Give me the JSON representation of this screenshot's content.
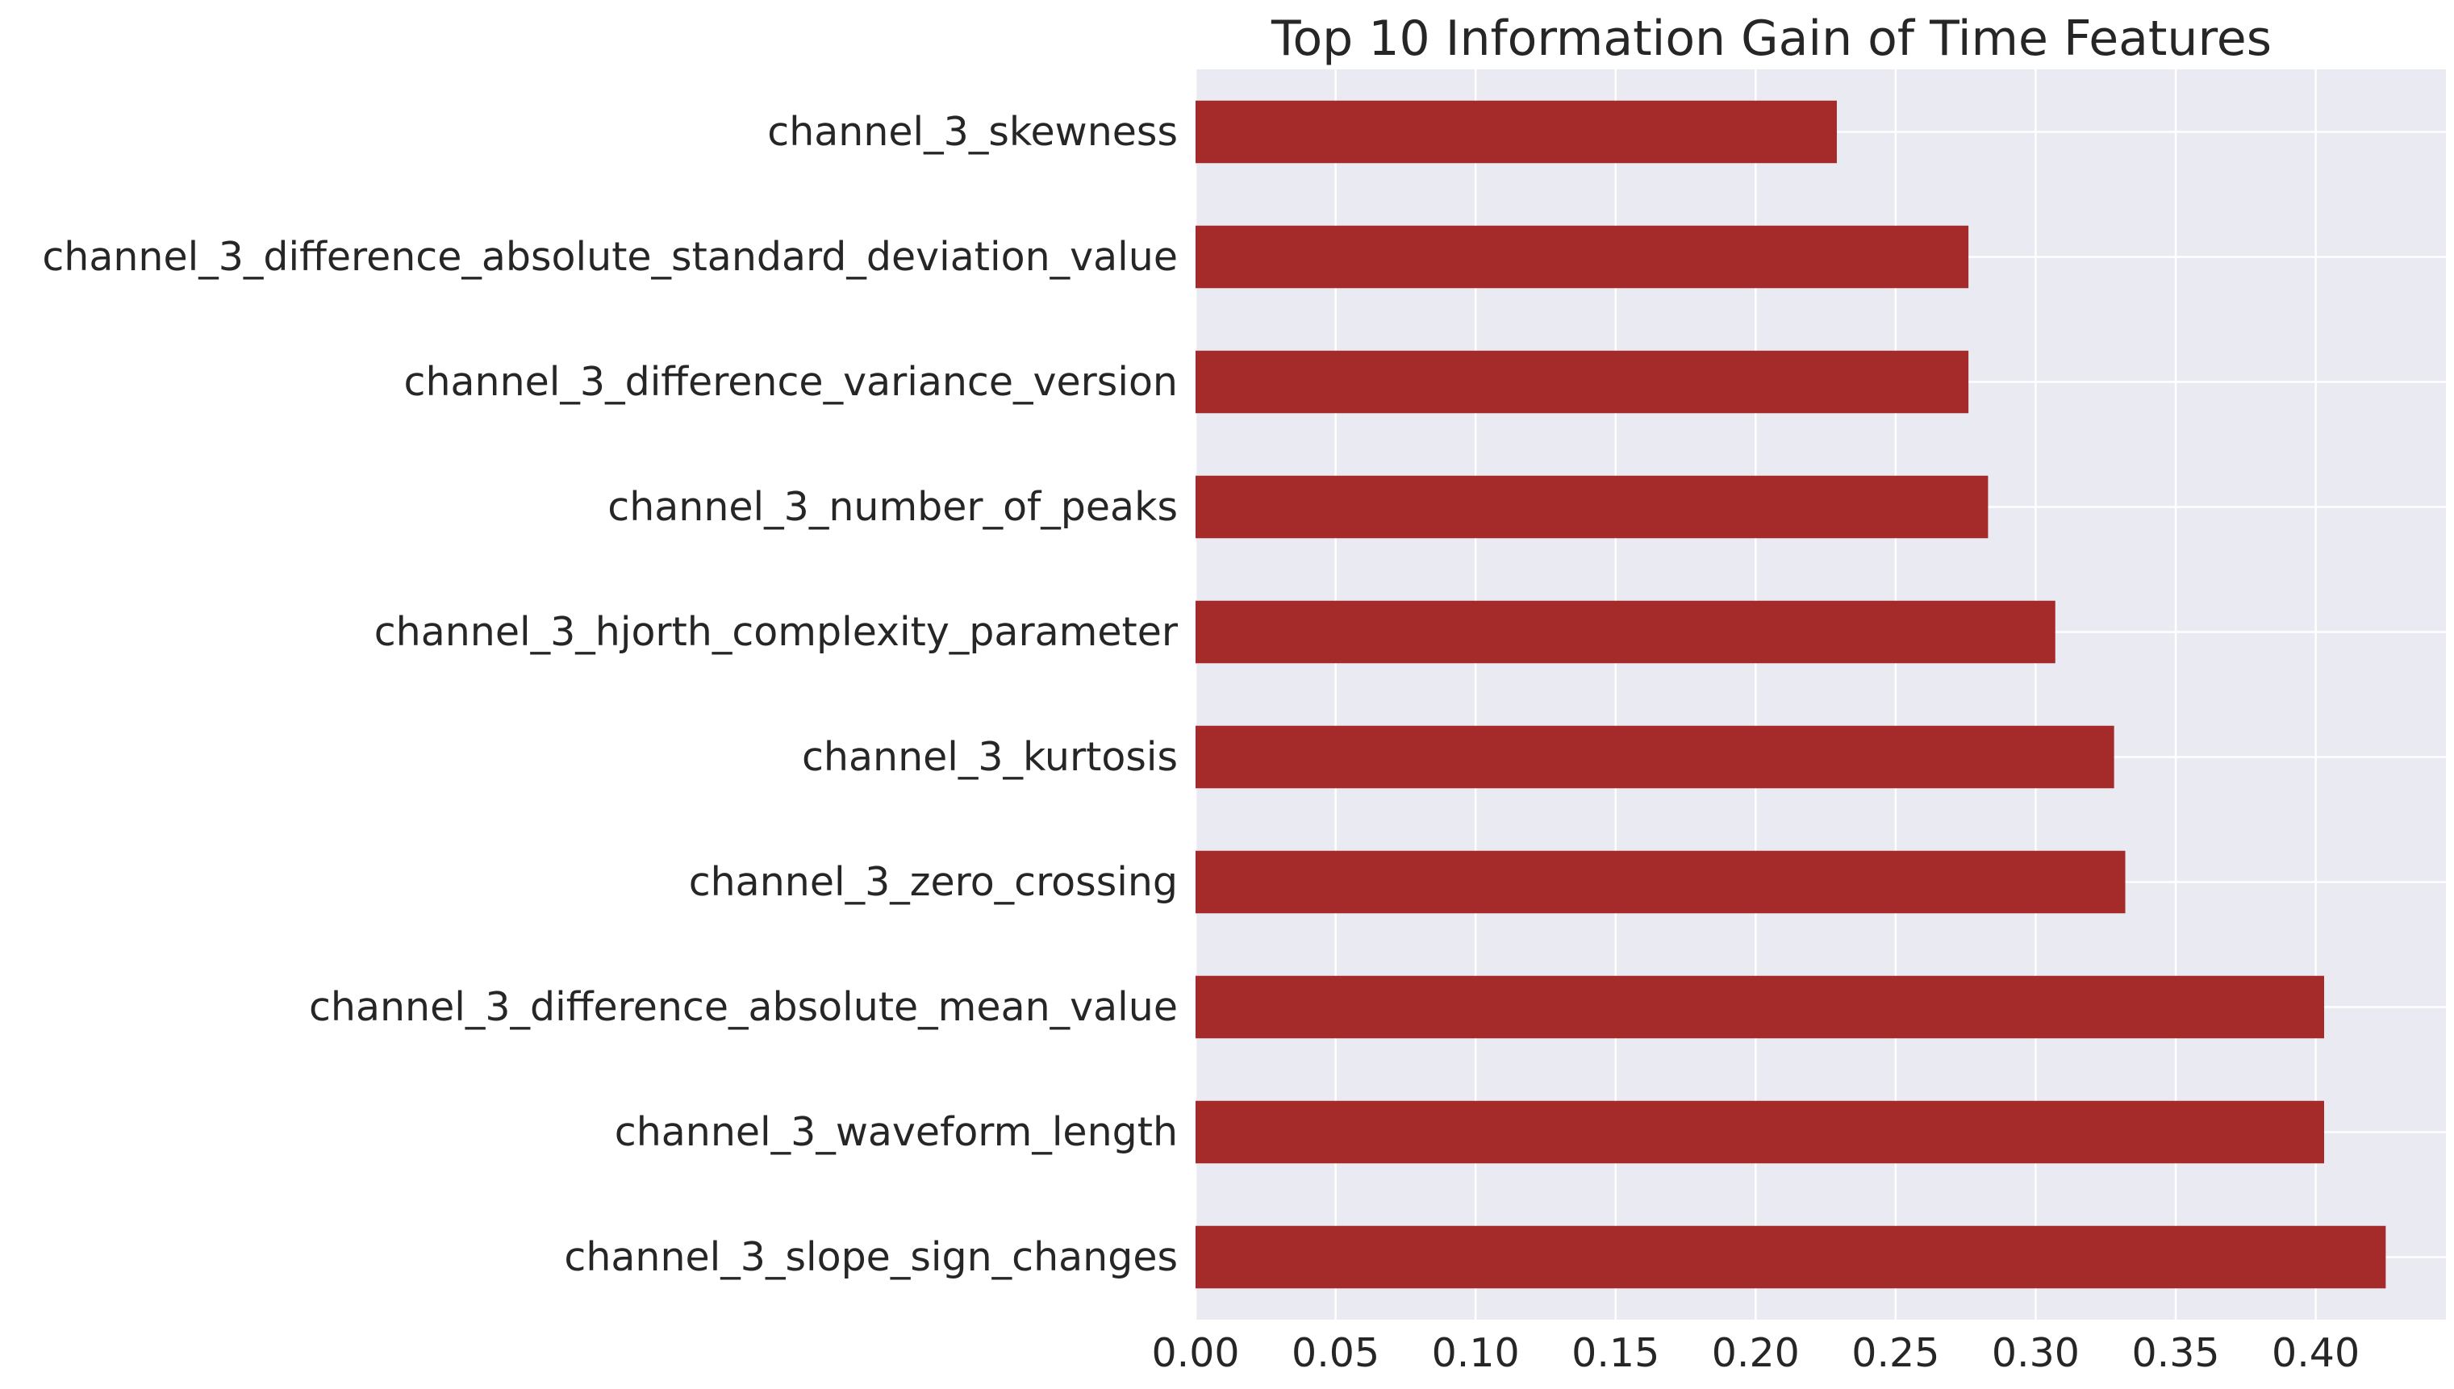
{
  "chart_data": {
    "type": "bar",
    "orientation": "horizontal",
    "title": "Top 10 Information Gain of Time Features",
    "xlabel": "",
    "ylabel": "",
    "categories": [
      "channel_3_skewness",
      "channel_3_difference_absolute_standard_deviation_value",
      "channel_3_difference_variance_version",
      "channel_3_number_of_peaks",
      "channel_3_hjorth_complexity_parameter",
      "channel_3_kurtosis",
      "channel_3_zero_crossing",
      "channel_3_difference_absolute_mean_value",
      "channel_3_waveform_length",
      "channel_3_slope_sign_changes"
    ],
    "values": [
      0.229,
      0.276,
      0.276,
      0.283,
      0.307,
      0.328,
      0.332,
      0.403,
      0.403,
      0.425
    ],
    "xlim": [
      0,
      0.4465
    ],
    "xticks": [
      "0.00",
      "0.05",
      "0.10",
      "0.15",
      "0.20",
      "0.25",
      "0.30",
      "0.35",
      "0.40"
    ],
    "grid": true,
    "bar_color": "#a52a2a",
    "background_color": "#eaeaf2",
    "grid_color": "#ffffff"
  }
}
